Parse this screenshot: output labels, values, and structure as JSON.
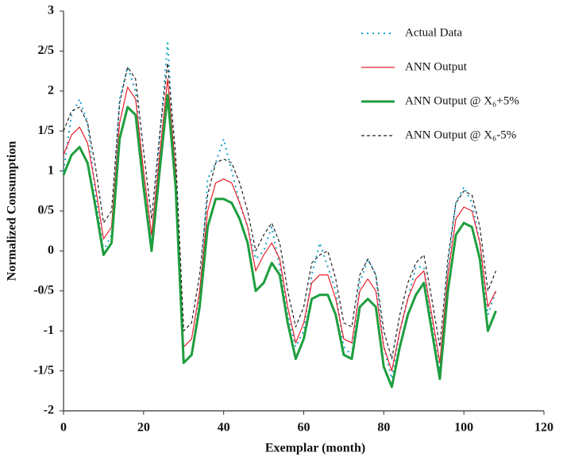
{
  "chart_data": {
    "type": "line",
    "x_label": "Exemplar (month)",
    "y_label": "Normalized Consumption",
    "x": [
      0,
      2,
      4,
      6,
      8,
      10,
      12,
      14,
      16,
      18,
      20,
      22,
      24,
      26,
      28,
      30,
      32,
      34,
      36,
      38,
      40,
      42,
      44,
      46,
      48,
      50,
      52,
      54,
      56,
      58,
      60,
      62,
      64,
      66,
      68,
      70,
      72,
      74,
      76,
      78,
      80,
      82,
      84,
      86,
      88,
      90,
      92,
      94,
      96,
      98,
      100,
      102,
      104,
      106,
      108
    ],
    "series": [
      {
        "name": "Actual Data",
        "color": "#1ba0c6",
        "line_style": "dotted",
        "values": [
          1.0,
          1.7,
          1.9,
          1.6,
          0.7,
          0.0,
          0.2,
          1.9,
          2.3,
          2.0,
          0.9,
          0.1,
          1.4,
          2.6,
          0.9,
          -1.4,
          -1.3,
          -0.6,
          0.9,
          1.1,
          1.4,
          1.0,
          0.6,
          0.3,
          -0.1,
          0.0,
          0.3,
          -0.2,
          -0.8,
          -1.2,
          -1.0,
          -0.3,
          0.1,
          -0.2,
          -0.5,
          -1.2,
          -1.3,
          -0.4,
          -0.1,
          -0.3,
          -1.2,
          -1.6,
          -1.0,
          -0.6,
          -0.2,
          -0.2,
          -0.9,
          -1.5,
          -0.2,
          0.6,
          0.8,
          0.6,
          0.1,
          -0.8,
          -0.5
        ]
      },
      {
        "name": "ANN Output",
        "color": "#e8202a",
        "line_style": "solid",
        "values": [
          1.2,
          1.45,
          1.55,
          1.35,
          0.8,
          0.15,
          0.3,
          1.6,
          2.05,
          1.9,
          1.0,
          0.2,
          1.2,
          2.15,
          1.0,
          -1.2,
          -1.1,
          -0.5,
          0.5,
          0.85,
          0.9,
          0.85,
          0.6,
          0.3,
          -0.25,
          -0.05,
          0.1,
          -0.1,
          -0.7,
          -1.15,
          -0.9,
          -0.4,
          -0.3,
          -0.3,
          -0.6,
          -1.1,
          -1.15,
          -0.5,
          -0.35,
          -0.5,
          -1.2,
          -1.5,
          -1.0,
          -0.6,
          -0.35,
          -0.25,
          -0.8,
          -1.4,
          -0.3,
          0.4,
          0.55,
          0.5,
          0.1,
          -0.7,
          -0.5
        ]
      },
      {
        "name": "ANN Output @ X₆+5%",
        "color": "#1e9e3e",
        "line_style": "bold",
        "values": [
          0.95,
          1.2,
          1.3,
          1.1,
          0.55,
          -0.05,
          0.1,
          1.4,
          1.8,
          1.7,
          0.8,
          0.0,
          1.0,
          1.95,
          0.8,
          -1.4,
          -1.3,
          -0.7,
          0.3,
          0.65,
          0.65,
          0.6,
          0.4,
          0.1,
          -0.5,
          -0.4,
          -0.15,
          -0.3,
          -0.9,
          -1.35,
          -1.1,
          -0.6,
          -0.55,
          -0.55,
          -0.8,
          -1.3,
          -1.35,
          -0.7,
          -0.6,
          -0.7,
          -1.45,
          -1.7,
          -1.2,
          -0.8,
          -0.55,
          -0.4,
          -1.0,
          -1.6,
          -0.5,
          0.2,
          0.35,
          0.3,
          -0.1,
          -1.0,
          -0.75
        ]
      },
      {
        "name": "ANN Output @ X₆-5%",
        "color": "#222222",
        "line_style": "dashed",
        "values": [
          1.5,
          1.75,
          1.8,
          1.6,
          1.05,
          0.35,
          0.5,
          1.85,
          2.3,
          2.15,
          1.25,
          0.4,
          1.45,
          2.35,
          1.2,
          -1.0,
          -0.9,
          -0.3,
          0.7,
          1.1,
          1.15,
          1.1,
          0.85,
          0.5,
          0.0,
          0.2,
          0.35,
          0.1,
          -0.5,
          -0.95,
          -0.7,
          -0.15,
          -0.05,
          0.0,
          -0.35,
          -0.9,
          -0.95,
          -0.3,
          -0.1,
          -0.3,
          -1.0,
          -1.35,
          -0.8,
          -0.4,
          -0.15,
          -0.05,
          -0.6,
          -1.2,
          -0.1,
          0.6,
          0.75,
          0.7,
          0.3,
          -0.5,
          -0.25
        ]
      }
    ],
    "xlim": [
      0,
      120
    ],
    "xticks": [
      0,
      20,
      40,
      60,
      80,
      100,
      120
    ],
    "ylim": [
      -2,
      3
    ],
    "yticks": [
      -2,
      {
        "value": -1.5,
        "label": "-1/5"
      },
      -1,
      {
        "value": -0.5,
        "label": "-0/5"
      },
      0,
      {
        "value": 0.5,
        "label": "0/5"
      },
      1,
      {
        "value": 1.5,
        "label": "1/5"
      },
      2,
      {
        "value": 2.5,
        "label": "2/5"
      },
      3
    ],
    "legend": "top-right"
  }
}
